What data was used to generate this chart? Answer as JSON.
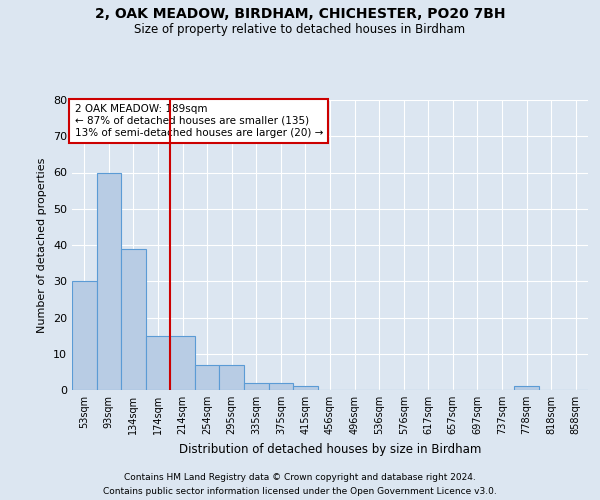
{
  "title1": "2, OAK MEADOW, BIRDHAM, CHICHESTER, PO20 7BH",
  "title2": "Size of property relative to detached houses in Birdham",
  "xlabel": "Distribution of detached houses by size in Birdham",
  "ylabel": "Number of detached properties",
  "footnote1": "Contains HM Land Registry data © Crown copyright and database right 2024.",
  "footnote2": "Contains public sector information licensed under the Open Government Licence v3.0.",
  "bins": [
    "53sqm",
    "93sqm",
    "134sqm",
    "174sqm",
    "214sqm",
    "254sqm",
    "295sqm",
    "335sqm",
    "375sqm",
    "415sqm",
    "456sqm",
    "496sqm",
    "536sqm",
    "576sqm",
    "617sqm",
    "657sqm",
    "697sqm",
    "737sqm",
    "778sqm",
    "818sqm",
    "858sqm"
  ],
  "values": [
    30,
    60,
    39,
    15,
    15,
    7,
    7,
    2,
    2,
    1,
    0,
    0,
    0,
    0,
    0,
    0,
    0,
    0,
    1,
    0,
    0
  ],
  "bar_color": "#b8cce4",
  "bar_edge_color": "#5b9bd5",
  "background_color": "#dce6f1",
  "grid_color": "#ffffff",
  "redline_x": 3.5,
  "redline_color": "#cc0000",
  "annotation_text": "2 OAK MEADOW: 189sqm\n← 87% of detached houses are smaller (135)\n13% of semi-detached houses are larger (20) →",
  "annotation_box_color": "#ffffff",
  "annotation_box_edge_color": "#cc0000",
  "ylim": [
    0,
    80
  ],
  "yticks": [
    0,
    10,
    20,
    30,
    40,
    50,
    60,
    70,
    80
  ]
}
